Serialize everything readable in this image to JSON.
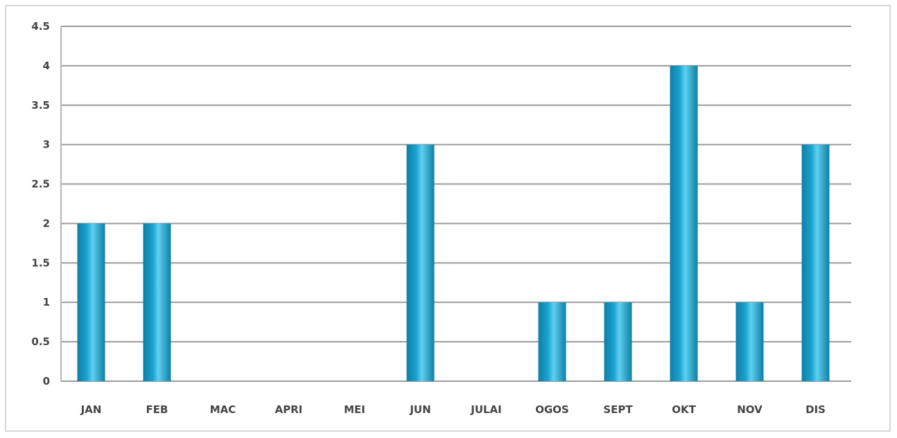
{
  "chart_data": {
    "type": "bar",
    "title": "",
    "xlabel": "",
    "ylabel": "",
    "categories": [
      "JAN",
      "FEB",
      "MAC",
      "APRI",
      "MEI",
      "JUN",
      "JULAI",
      "OGOS",
      "SEPT",
      "OKT",
      "NOV",
      "DIS"
    ],
    "values": [
      2,
      2,
      0,
      0,
      0,
      3,
      0,
      1,
      1,
      4,
      1,
      3
    ],
    "ylim": [
      0,
      4.5
    ],
    "yticks": [
      0,
      0.5,
      1,
      1.5,
      2,
      2.5,
      3,
      3.5,
      4,
      4.5
    ],
    "ytick_labels": [
      "0",
      "0.5",
      "1",
      "1.5",
      "2",
      "2.5",
      "3",
      "3.5",
      "4",
      "4.5"
    ],
    "grid": true,
    "legend": "none",
    "colors": {
      "bar_top": "#5fd0f0",
      "bar_mid": "#1aa3cf",
      "bar_edge": "#0e7fa6",
      "grid": "#9a9a9a",
      "text": "#444444"
    }
  }
}
